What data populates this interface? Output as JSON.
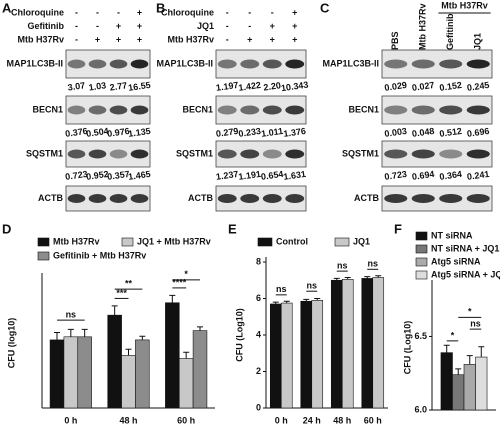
{
  "panels": [
    {
      "label": "A",
      "treatments": [
        {
          "name": "Chloroquine",
          "signs": [
            "-",
            "-",
            "-",
            "+"
          ]
        },
        {
          "name": "Gefitinib",
          "signs": [
            "-",
            "-",
            "+",
            "+"
          ]
        },
        {
          "name": "Mtb H37Rv",
          "signs": [
            "-",
            "+",
            "+",
            "+"
          ]
        }
      ],
      "blots": [
        {
          "name": "MAP1LC3B-II",
          "quantities": [
            "3.07",
            "1.03",
            "2.77",
            "16.55"
          ]
        },
        {
          "name": "BECN1",
          "quantities": [
            "0.376",
            "0.504",
            "0.976",
            "1.135"
          ]
        },
        {
          "name": "SQSTM1",
          "quantities": [
            "0.723",
            "0.952",
            "0.357",
            "1.465"
          ]
        },
        {
          "name": "ACTB"
        }
      ]
    },
    {
      "label": "B",
      "treatments": [
        {
          "name": "Chloroquine",
          "signs": [
            "-",
            "-",
            "-",
            "+"
          ]
        },
        {
          "name": "JQ1",
          "signs": [
            "-",
            "-",
            "+",
            "+"
          ]
        },
        {
          "name": "Mtb H37Rv",
          "signs": [
            "-",
            "+",
            "+",
            "+"
          ]
        }
      ],
      "blots": [
        {
          "name": "MAP1LC3B-II",
          "quantities": [
            "1.197",
            "1.422",
            "2.20",
            "10.343"
          ]
        },
        {
          "name": "BECN1",
          "quantities": [
            "0.279",
            "0.233",
            "1.011",
            "1.376"
          ]
        },
        {
          "name": "SQSTM1",
          "quantities": [
            "1.237",
            "1.191",
            "0.654",
            "1.631"
          ]
        },
        {
          "name": "ACTB"
        }
      ]
    },
    {
      "label": "C",
      "columns": [
        "PBS",
        "Mtb H37Rv",
        "Gefitinib",
        "JQ1"
      ],
      "group": "Mtb H37Rv",
      "blots": [
        {
          "name": "MAP1LC3B-II",
          "quantities": [
            "0.029",
            "0.027",
            "0.152",
            "0.245"
          ]
        },
        {
          "name": "BECN1",
          "quantities": [
            "0.003",
            "0.048",
            "0.512",
            "0.696"
          ]
        },
        {
          "name": "SQSTM1",
          "quantities": [
            "0.723",
            "0.694",
            "0.364",
            "0.241"
          ]
        },
        {
          "name": "ACTB"
        }
      ]
    }
  ],
  "chart_data": [
    {
      "type": "bar",
      "panel": "D",
      "ylabel": "CFU (log10)",
      "categories": [
        "0 h",
        "48 h",
        "60 h"
      ],
      "ylim": [
        4.2,
        6.3
      ],
      "series": [
        {
          "name": "Mtb H37Rv",
          "color": "#111111",
          "values": [
            5.3,
            5.7,
            5.9
          ],
          "errors": [
            0.12,
            0.15,
            0.12
          ]
        },
        {
          "name": "JQ1 + Mtb H37Rv",
          "color": "#c8c8c8",
          "values": [
            5.35,
            5.05,
            5.0
          ],
          "errors": [
            0.12,
            0.1,
            0.1
          ]
        },
        {
          "name": "Gefitinib + Mtb H37Rv",
          "color": "#8c8c8c",
          "values": [
            5.35,
            5.3,
            5.45
          ],
          "errors": [
            0.12,
            0.06,
            0.06
          ]
        }
      ],
      "annotations": [
        "ns",
        "***",
        "**",
        "****",
        "*"
      ]
    },
    {
      "type": "bar",
      "panel": "E",
      "ylabel": "CFU (Log10)",
      "categories": [
        "0 h",
        "24 h",
        "48 h",
        "60 h"
      ],
      "ylim": [
        0,
        8
      ],
      "yticks": [
        0,
        2,
        4,
        6,
        8
      ],
      "series": [
        {
          "name": "Control",
          "color": "#111111",
          "values": [
            5.7,
            5.85,
            7.0,
            7.1
          ],
          "errors": [
            0.1,
            0.1,
            0.1,
            0.1
          ]
        },
        {
          "name": "JQ1",
          "color": "#c8c8c8",
          "values": [
            5.75,
            5.9,
            7.05,
            7.15
          ],
          "errors": [
            0.1,
            0.1,
            0.1,
            0.1
          ]
        }
      ],
      "annotations": [
        "ns",
        "ns",
        "ns",
        "ns"
      ]
    },
    {
      "type": "bar",
      "panel": "F",
      "ylabel": "CFU (Log10)",
      "ylim": [
        6.0,
        6.85
      ],
      "yticks": [
        {
          "value": 6,
          "label": "6.0"
        },
        6.5
      ],
      "series": [
        {
          "name": "NT siRNA",
          "color": "#111111",
          "values": [
            6.39
          ],
          "errors": [
            0.05
          ]
        },
        {
          "name": "NT siRNA + JQ1",
          "color": "#777777",
          "values": [
            6.24
          ],
          "errors": [
            0.04
          ]
        },
        {
          "name": "Atg5 siRNA",
          "color": "#aaaaaa",
          "values": [
            6.31
          ],
          "errors": [
            0.06
          ]
        },
        {
          "name": "Atg5 siRNA + JQ1",
          "color": "#dddddd",
          "values": [
            6.36
          ],
          "errors": [
            0.07
          ]
        }
      ],
      "annotations": [
        "*",
        "ns",
        "*"
      ]
    }
  ]
}
